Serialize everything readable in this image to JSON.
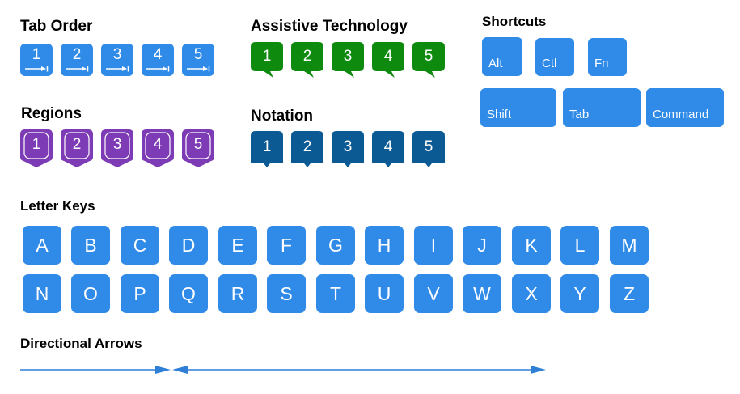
{
  "tab_order": {
    "title": "Tab Order",
    "keys": [
      "1",
      "2",
      "3",
      "4",
      "5"
    ]
  },
  "assistive": {
    "title": "Assistive Technology",
    "keys": [
      "1",
      "2",
      "3",
      "4",
      "5"
    ],
    "color": "#0e8a0e"
  },
  "shortcuts": {
    "title": "Shortcuts",
    "row1": [
      "Alt",
      "Ctl",
      "Fn"
    ],
    "row2": [
      "Shift",
      "Tab",
      "Command"
    ]
  },
  "regions": {
    "title": "Regions",
    "keys": [
      "1",
      "2",
      "3",
      "4",
      "5"
    ],
    "color": "#7d3bb5"
  },
  "notation": {
    "title": "Notation",
    "keys": [
      "1",
      "2",
      "3",
      "4",
      "5"
    ],
    "color": "#0c5a93"
  },
  "letters": {
    "title": "Letter Keys",
    "row1": [
      "A",
      "B",
      "C",
      "D",
      "E",
      "F",
      "G",
      "H",
      "I",
      "J",
      "K",
      "L",
      "M"
    ],
    "row2": [
      "N",
      "O",
      "P",
      "Q",
      "R",
      "S",
      "T",
      "U",
      "V",
      "W",
      "X",
      "Y",
      "Z"
    ]
  },
  "arrows": {
    "title": "Directional Arrows"
  },
  "colors": {
    "key_blue": "#2f8ae8",
    "arrow_blue": "#2f7fd6"
  }
}
